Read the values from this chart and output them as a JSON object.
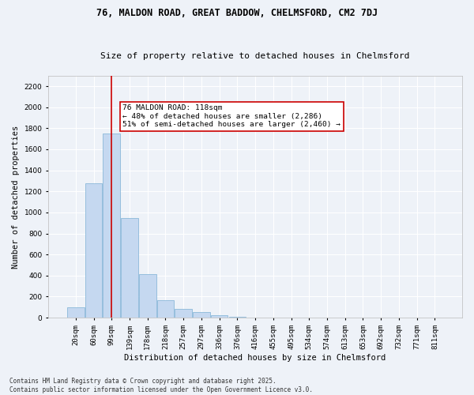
{
  "title1": "76, MALDON ROAD, GREAT BADDOW, CHELMSFORD, CM2 7DJ",
  "title2": "Size of property relative to detached houses in Chelmsford",
  "xlabel": "Distribution of detached houses by size in Chelmsford",
  "ylabel": "Number of detached properties",
  "categories": [
    "20sqm",
    "60sqm",
    "99sqm",
    "139sqm",
    "178sqm",
    "218sqm",
    "257sqm",
    "297sqm",
    "336sqm",
    "376sqm",
    "416sqm",
    "455sqm",
    "495sqm",
    "534sqm",
    "574sqm",
    "613sqm",
    "653sqm",
    "692sqm",
    "732sqm",
    "771sqm",
    "811sqm"
  ],
  "values": [
    100,
    1280,
    1750,
    950,
    410,
    165,
    80,
    50,
    25,
    10,
    4,
    1,
    0,
    0,
    0,
    0,
    0,
    0,
    0,
    0,
    0
  ],
  "bar_color": "#c5d8f0",
  "bar_edge_color": "#7bafd4",
  "vline_x": 2,
  "vline_color": "#cc0000",
  "ylim": [
    0,
    2300
  ],
  "yticks": [
    0,
    200,
    400,
    600,
    800,
    1000,
    1200,
    1400,
    1600,
    1800,
    2000,
    2200
  ],
  "annotation_text": "76 MALDON ROAD: 118sqm\n← 48% of detached houses are smaller (2,286)\n51% of semi-detached houses are larger (2,460) →",
  "annotation_box_color": "#ffffff",
  "annotation_box_edge": "#cc0000",
  "footnote": "Contains HM Land Registry data © Crown copyright and database right 2025.\nContains public sector information licensed under the Open Government Licence v3.0.",
  "bg_color": "#eef2f8",
  "grid_color": "#ffffff",
  "title_fontsize": 8.5,
  "subtitle_fontsize": 8,
  "axis_label_fontsize": 7.5,
  "tick_fontsize": 6.5,
  "footnote_fontsize": 5.5,
  "annotation_fontsize": 6.8
}
